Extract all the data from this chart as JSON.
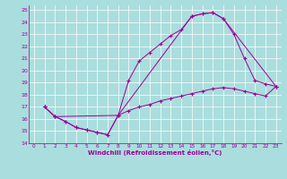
{
  "xlabel": "Windchill (Refroidissement éolien,°C)",
  "bg_color": "#aadddd",
  "line_color": "#990099",
  "xlim": [
    -0.5,
    23.5
  ],
  "ylim": [
    14,
    25.4
  ],
  "xticks": [
    0,
    1,
    2,
    3,
    4,
    5,
    6,
    7,
    8,
    9,
    10,
    11,
    12,
    13,
    14,
    15,
    16,
    17,
    18,
    19,
    20,
    21,
    22,
    23
  ],
  "yticks": [
    14,
    15,
    16,
    17,
    18,
    19,
    20,
    21,
    22,
    23,
    24,
    25
  ],
  "line1_x": [
    1,
    2,
    3,
    4,
    5,
    6,
    7,
    8,
    9,
    10,
    11,
    12,
    13,
    14,
    15,
    16,
    17,
    18,
    19,
    20,
    21,
    22,
    23
  ],
  "line1_y": [
    17.0,
    16.2,
    15.8,
    15.3,
    15.1,
    14.9,
    14.7,
    16.3,
    19.2,
    20.8,
    21.5,
    22.2,
    22.9,
    23.4,
    24.5,
    24.7,
    24.8,
    24.3,
    23.0,
    21.0,
    19.2,
    18.9,
    18.7
  ],
  "line2_x": [
    1,
    2,
    8,
    15,
    16,
    17,
    18,
    23
  ],
  "line2_y": [
    17.0,
    16.2,
    16.3,
    24.5,
    24.7,
    24.8,
    24.3,
    18.7
  ],
  "line3_x": [
    1,
    2,
    3,
    4,
    5,
    6,
    7,
    8,
    9,
    10,
    11,
    12,
    13,
    14,
    15,
    16,
    17,
    18,
    19,
    20,
    21,
    22,
    23
  ],
  "line3_y": [
    17.0,
    16.2,
    15.8,
    15.3,
    15.1,
    14.9,
    14.7,
    16.3,
    16.7,
    17.0,
    17.2,
    17.5,
    17.7,
    17.9,
    18.1,
    18.3,
    18.5,
    18.6,
    18.5,
    18.3,
    18.1,
    17.9,
    18.7
  ]
}
